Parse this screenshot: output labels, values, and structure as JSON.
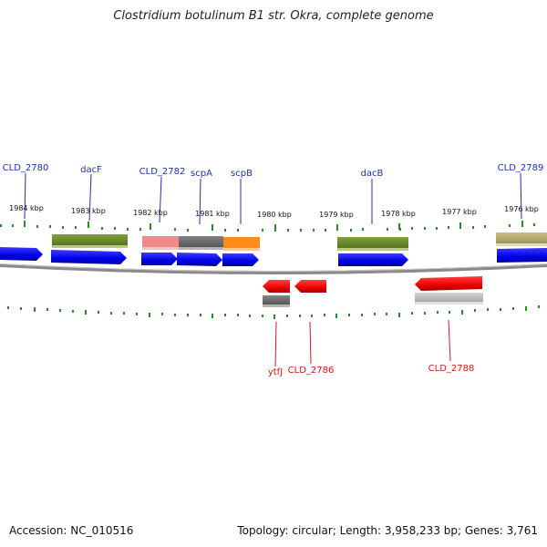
{
  "title": "Clostridium botulinum B1 str. Okra, complete genome",
  "footer": {
    "accession": "Accession: NC_010516",
    "summary": "Topology: circular; Length: 3,958,233 bp; Genes: 3,761"
  },
  "ticks": [
    "1984 kbp",
    "1983 kbp",
    "1982 kbp",
    "1981 kbp",
    "1980 kbp",
    "1979 kbp",
    "1978 kbp",
    "1977 kbp",
    "1976 kbp"
  ],
  "forward_genes": [
    "CLD_2780",
    "dacF",
    "CLD_2782",
    "scpA",
    "scpB",
    "dacB",
    "CLD_2789"
  ],
  "reverse_genes": [
    "ytfJ",
    "CLD_2786",
    "CLD_2788"
  ],
  "colors": {
    "forward_cds": "#0a0af0",
    "reverse_cds": "#ee0a0a",
    "backbone": "#8a8a8a",
    "tick": "#2a8a2a",
    "olive": "#6e8b2a",
    "gray": "#6b6b6b",
    "pink": "#f08a8a",
    "orange": "#ff8c1a",
    "khaki": "#b5ad6a",
    "lightgray": "#b9b9b9"
  }
}
